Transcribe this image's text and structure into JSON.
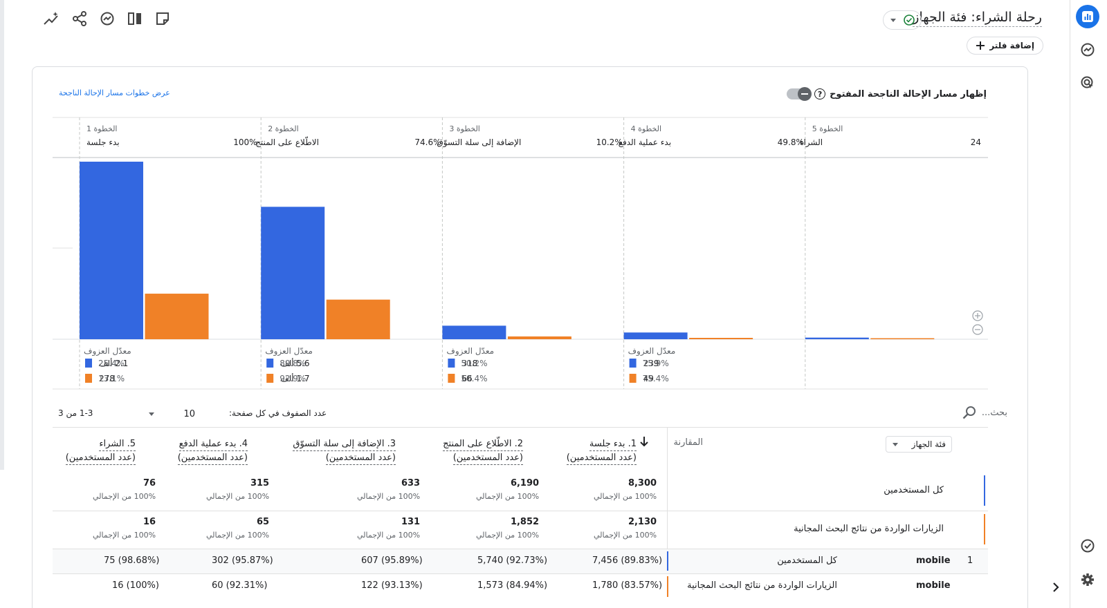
{
  "header": {
    "title": "رحلة الشراء: فئة الجهاز",
    "add_filter_label": "إضافة فلتر"
  },
  "toolbar": {
    "icons": [
      "insights-icon",
      "share-icon",
      "explore-icon",
      "compare-icon",
      "edit-icon"
    ]
  },
  "card": {
    "open_funnel_label": "إظهار مسار الإحالة الناجحة المفتوح",
    "help_glyph": "?",
    "view_steps_label": "عرض خطوات مسار الإحالة الناجحة"
  },
  "colors": {
    "series_1": "#3367e0",
    "series_2": "#f08127",
    "accent": "#1a73e8"
  },
  "chart_data": {
    "type": "bar",
    "ylim": [
      0,
      8300
    ],
    "steps": [
      {
        "step_label": "الخطوة 1",
        "name": "بدء جلسة",
        "pct": ""
      },
      {
        "step_label": "الخطوة 2",
        "name": "الاطّلاع على المنتج",
        "pct": "100%"
      },
      {
        "step_label": "الخطوة 3",
        "name": "الإضافة إلى سلة التسوّق",
        "pct": "74.6%"
      },
      {
        "step_label": "الخطوة 4",
        "name": "بدء عملية الدفع",
        "pct": "10.2%"
      },
      {
        "step_label": "الخطوة 5",
        "name": "الشراء",
        "pct": "49.8%"
      }
    ],
    "edge_label": "24",
    "series": [
      {
        "values": [
          8300,
          6190,
          633,
          315,
          76
        ]
      },
      {
        "values": [
          2130,
          1852,
          131,
          65,
          16
        ]
      }
    ],
    "abandonment_label": "معدّل العزوف",
    "abandonment": [
      [
        {
          "count": "2.1 ألف",
          "rate": "25.4%"
        },
        {
          "count": "278",
          "rate": "13.1%"
        }
      ],
      [
        {
          "count": "5.6 ألف",
          "rate": "89.8%"
        },
        {
          "count": "1.7 ألف",
          "rate": "92.9%"
        }
      ],
      [
        {
          "count": "318",
          "rate": "50.2%"
        },
        {
          "count": "66",
          "rate": "50.4%"
        }
      ],
      [
        {
          "count": "239",
          "rate": "75.9%"
        },
        {
          "count": "49",
          "rate": "75.4%"
        }
      ]
    ]
  },
  "table": {
    "search_placeholder": "بحث...",
    "rows_per_page_label": "عدد الصفوف في كل صفحة:",
    "rows_per_page_value": "10",
    "pagination": "1-3 من 3",
    "dimension_select": "فئة الجهاز",
    "comparison_label": "المقارنة",
    "columns": [
      {
        "title": "1. بدء جلسة",
        "sub": "(عدد المستخدمين)"
      },
      {
        "title": "2. الاطّلاع على المنتج",
        "sub": "(عدد المستخدمين)"
      },
      {
        "title": "3. الإضافة إلى سلة التسوّق",
        "sub": "(عدد المستخدمين)"
      },
      {
        "title": "4. بدء عملية الدفع",
        "sub": "(عدد المستخدمين)"
      },
      {
        "title": "5. الشراء",
        "sub": "(عدد المستخدمين)"
      }
    ],
    "totals": [
      {
        "segment": "كل المستخدمين",
        "values": [
          "8,300",
          "6,190",
          "633",
          "315",
          "76"
        ],
        "pcts": [
          "100% من الإجمالي",
          "100% من الإجمالي",
          "100% من الإجمالي",
          "100% من الإجمالي",
          "100% من الإجمالي"
        ]
      },
      {
        "segment": "الزيارات الواردة من نتائج البحث المجانية",
        "values": [
          "2,130",
          "1,852",
          "131",
          "65",
          "16"
        ],
        "pcts": [
          "100% من الإجمالي",
          "100% من الإجمالي",
          "100% من الإجمالي",
          "100% من الإجمالي",
          "100% من الإجمالي"
        ]
      }
    ],
    "rows": [
      {
        "num": "1",
        "device": "mobile",
        "segment": "كل المستخدمين",
        "values": [
          "7,456 (89.83%)",
          "5,740 (92.73%)",
          "607 (95.89%)",
          "302 (95.87%)",
          "75 (98.68%)"
        ]
      },
      {
        "num": "",
        "device": "mobile",
        "segment": "الزيارات الواردة من نتائج البحث المجانية",
        "values": [
          "1,780 (83.57%)",
          "1,573 (84.94%)",
          "122 (93.13%)",
          "60 (92.31%)",
          "16 (100%)"
        ]
      }
    ]
  }
}
